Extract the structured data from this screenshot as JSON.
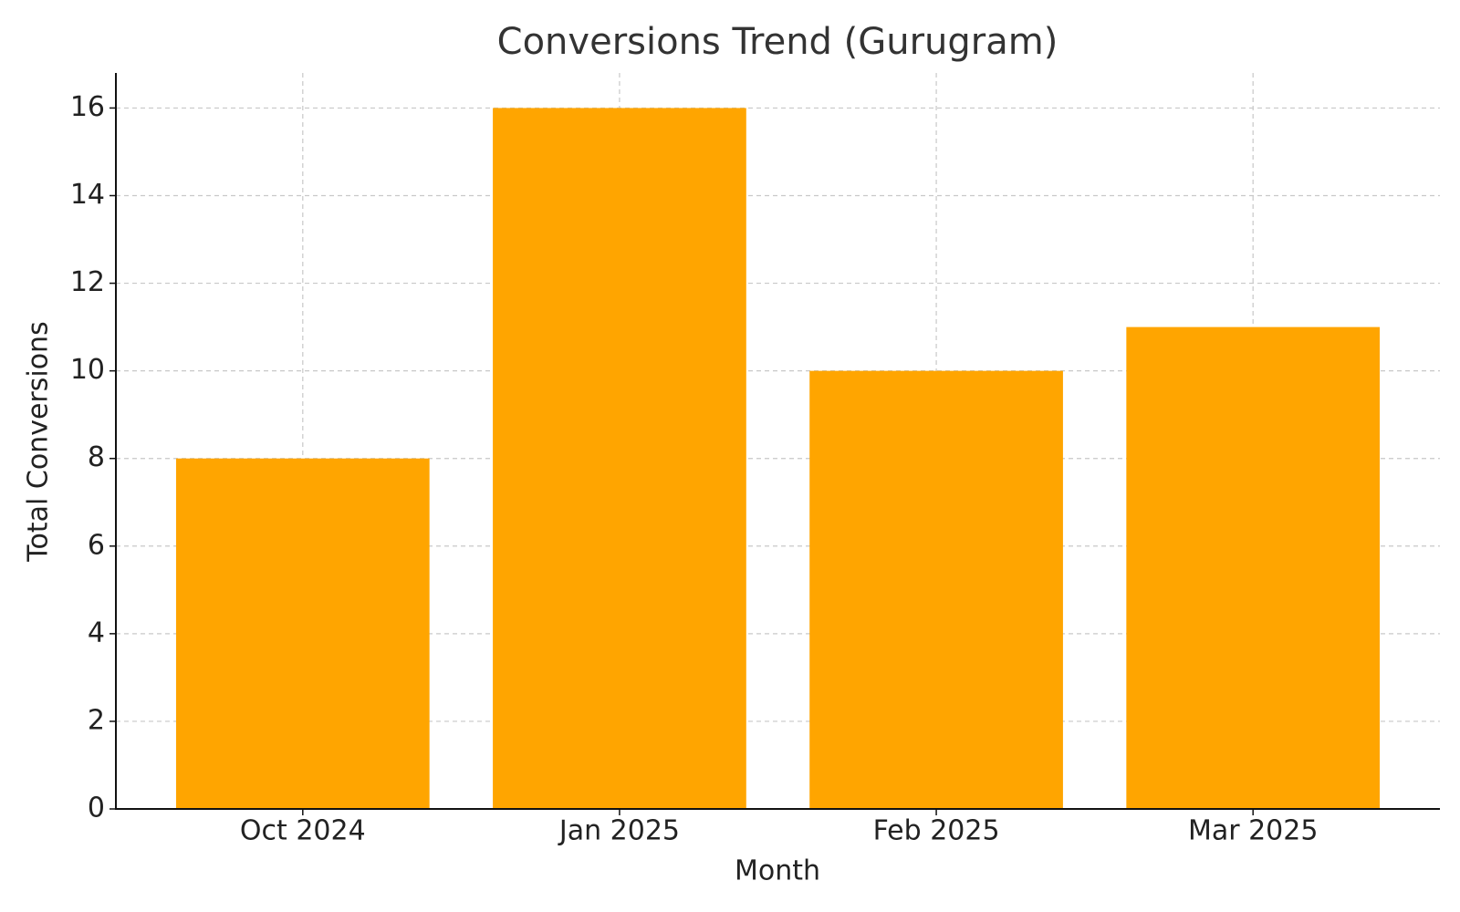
{
  "chart_data": {
    "type": "bar",
    "title": "Conversions Trend (Gurugram)",
    "x_label": "Month",
    "y_label": "Total Conversions",
    "categories": [
      "Oct 2024",
      "Jan 2025",
      "Feb 2025",
      "Mar 2025"
    ],
    "values": [
      8,
      16,
      10,
      11
    ],
    "color": "#ffa500",
    "ylim": [
      0,
      16.8
    ],
    "yticks": [
      0,
      2,
      4,
      6,
      8,
      10,
      12,
      14,
      16
    ],
    "grid": true
  }
}
